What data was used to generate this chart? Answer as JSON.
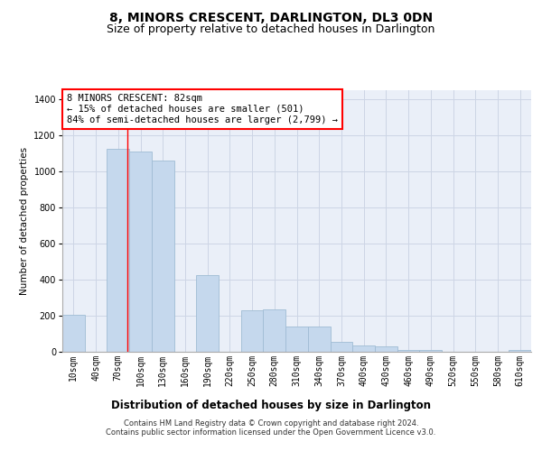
{
  "title": "8, MINORS CRESCENT, DARLINGTON, DL3 0DN",
  "subtitle": "Size of property relative to detached houses in Darlington",
  "xlabel": "Distribution of detached houses by size in Darlington",
  "ylabel": "Number of detached properties",
  "bar_categories": [
    "10sqm",
    "40sqm",
    "70sqm",
    "100sqm",
    "130sqm",
    "160sqm",
    "190sqm",
    "220sqm",
    "250sqm",
    "280sqm",
    "310sqm",
    "340sqm",
    "370sqm",
    "400sqm",
    "430sqm",
    "460sqm",
    "490sqm",
    "520sqm",
    "550sqm",
    "580sqm",
    "610sqm"
  ],
  "bar_values": [
    205,
    0,
    1125,
    1110,
    1060,
    0,
    425,
    0,
    230,
    235,
    140,
    140,
    55,
    35,
    30,
    10,
    10,
    0,
    0,
    0,
    10
  ],
  "bar_color": "#c5d8ed",
  "bar_edge_color": "#a0bcd4",
  "red_line_x": 2.4,
  "annotation_text": "8 MINORS CRESCENT: 82sqm\n← 15% of detached houses are smaller (501)\n84% of semi-detached houses are larger (2,799) →",
  "annotation_box_color": "white",
  "annotation_box_edge_color": "red",
  "ylim": [
    0,
    1450
  ],
  "yticks": [
    0,
    200,
    400,
    600,
    800,
    1000,
    1200,
    1400
  ],
  "grid_color": "#cdd5e5",
  "background_color": "#eaeff8",
  "footer_line1": "Contains HM Land Registry data © Crown copyright and database right 2024.",
  "footer_line2": "Contains public sector information licensed under the Open Government Licence v3.0.",
  "title_fontsize": 10,
  "subtitle_fontsize": 9,
  "tick_fontsize": 7,
  "ylabel_fontsize": 7.5,
  "xlabel_fontsize": 8.5,
  "annotation_fontsize": 7.5,
  "footer_fontsize": 6
}
